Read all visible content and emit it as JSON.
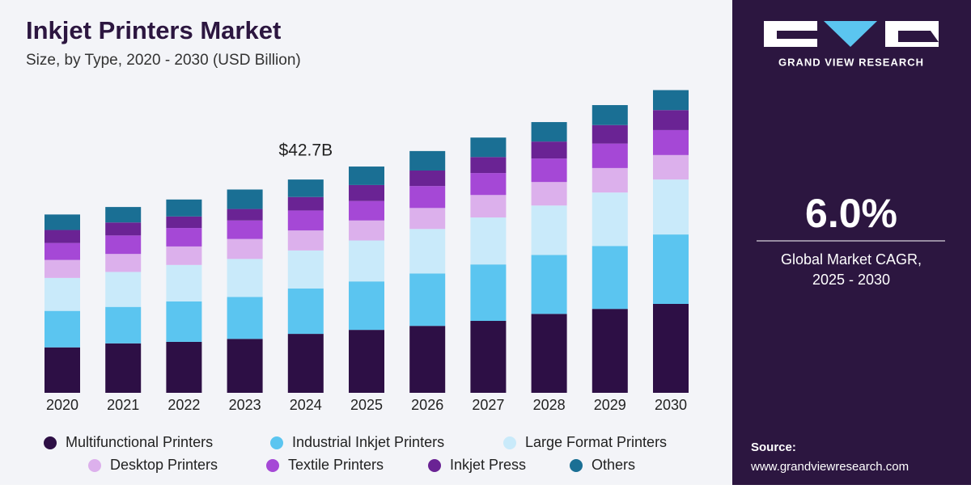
{
  "chart_data": {
    "type": "stacked-bar",
    "title": "Inkjet Printers Market",
    "subtitle": "Size, by Type, 2020 - 2030 (USD Billion)",
    "categories": [
      "2020",
      "2021",
      "2022",
      "2023",
      "2024",
      "2025",
      "2026",
      "2027",
      "2028",
      "2029",
      "2030"
    ],
    "series": [
      {
        "name": "Multifunctional Printers",
        "color": "#2d0f45",
        "values": [
          9.1,
          9.9,
          10.2,
          10.8,
          11.8,
          12.6,
          13.4,
          14.4,
          15.8,
          16.8,
          17.8
        ]
      },
      {
        "name": "Industrial Inkjet Printers",
        "color": "#5bc5f0",
        "values": [
          7.3,
          7.3,
          8.1,
          8.4,
          9.1,
          9.7,
          10.5,
          11.3,
          11.8,
          12.6,
          13.9
        ]
      },
      {
        "name": "Large Format Printers",
        "color": "#c9eafa",
        "values": [
          6.6,
          7.0,
          7.3,
          7.6,
          7.6,
          8.2,
          8.9,
          9.4,
          9.9,
          10.7,
          11.0
        ]
      },
      {
        "name": "Desktop Printers",
        "color": "#dcb0ec",
        "values": [
          3.6,
          3.6,
          3.7,
          4.0,
          4.0,
          4.0,
          4.2,
          4.5,
          4.7,
          4.9,
          4.9
        ]
      },
      {
        "name": "Textile Printers",
        "color": "#a548d6",
        "values": [
          3.4,
          3.7,
          3.7,
          3.7,
          4.0,
          3.9,
          4.4,
          4.4,
          4.7,
          4.9,
          5.0
        ]
      },
      {
        "name": "Inkjet Press",
        "color": "#6a2394",
        "values": [
          2.6,
          2.6,
          2.3,
          2.3,
          2.7,
          3.2,
          3.1,
          3.2,
          3.4,
          3.7,
          4.0
        ]
      },
      {
        "name": "Others",
        "color": "#1a6f94",
        "values": [
          3.1,
          3.1,
          3.4,
          3.9,
          3.5,
          3.7,
          3.9,
          3.9,
          3.9,
          4.0,
          4.0
        ]
      }
    ],
    "annotation": {
      "label": "$42.7B",
      "value": 42.7,
      "category": "2024"
    }
  },
  "brand": "GRAND VIEW RESEARCH",
  "cagr": {
    "value": "6.0%",
    "label": "Global Market CAGR,",
    "period": "2025 - 2030"
  },
  "source": {
    "label": "Source:",
    "url": "www.grandviewresearch.com"
  }
}
